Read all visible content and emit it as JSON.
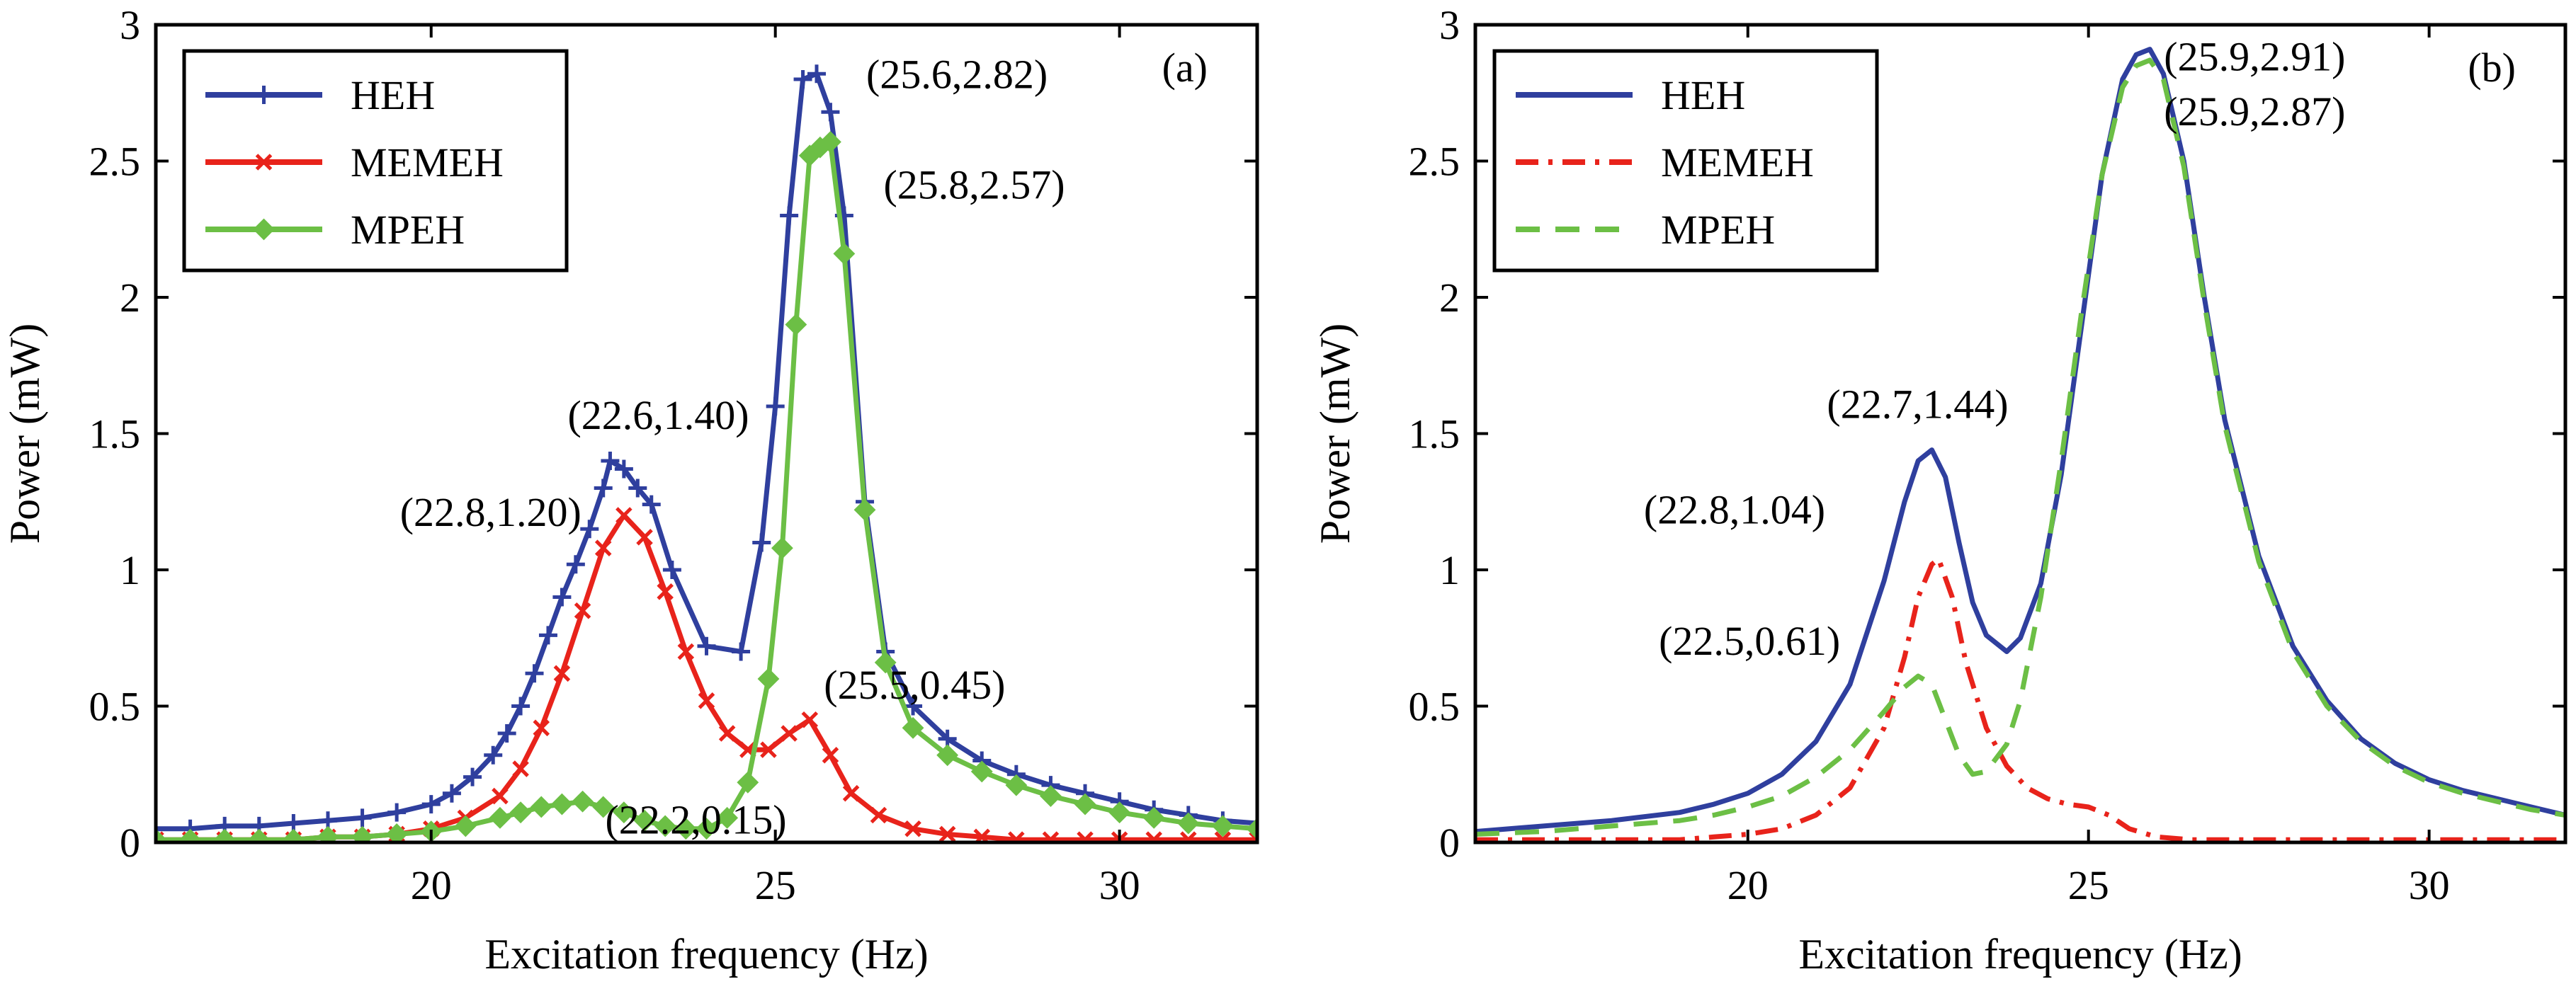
{
  "chart_data": [
    {
      "panel_label": "(a)",
      "type": "line",
      "xlabel": "Excitation frequency (Hz)",
      "ylabel": "Power (mW)",
      "xlim": [
        16,
        32
      ],
      "ylim": [
        0,
        3
      ],
      "xticks": [
        20,
        25,
        30
      ],
      "yticks": [
        0,
        0.5,
        1,
        1.5,
        2,
        2.5,
        3
      ],
      "ytick_labels": [
        "0",
        "0.5",
        "1",
        "1.5",
        "2",
        "2.5",
        "3"
      ],
      "legend_position": "top-left",
      "series": [
        {
          "name": "HEH",
          "color": "#2f3f9e",
          "line": "solid",
          "marker": "plus",
          "x": [
            16,
            16.5,
            17,
            17.5,
            18,
            18.5,
            19,
            19.5,
            20,
            20.3,
            20.6,
            20.9,
            21.1,
            21.3,
            21.5,
            21.7,
            21.9,
            22.1,
            22.3,
            22.5,
            22.6,
            22.8,
            23.0,
            23.2,
            23.5,
            24.0,
            24.5,
            24.8,
            25.0,
            25.2,
            25.4,
            25.6,
            25.8,
            26.0,
            26.3,
            26.6,
            27.0,
            27.5,
            28.0,
            28.5,
            29,
            29.5,
            30,
            30.5,
            31,
            31.5,
            32
          ],
          "y": [
            0.05,
            0.05,
            0.06,
            0.06,
            0.07,
            0.08,
            0.09,
            0.11,
            0.14,
            0.18,
            0.24,
            0.32,
            0.4,
            0.5,
            0.62,
            0.76,
            0.9,
            1.02,
            1.15,
            1.3,
            1.4,
            1.37,
            1.3,
            1.24,
            1.0,
            0.72,
            0.7,
            1.1,
            1.6,
            2.3,
            2.8,
            2.82,
            2.68,
            2.3,
            1.25,
            0.7,
            0.5,
            0.38,
            0.3,
            0.25,
            0.21,
            0.18,
            0.15,
            0.12,
            0.1,
            0.08,
            0.07
          ]
        },
        {
          "name": "MEMEH",
          "color": "#e8231b",
          "line": "solid",
          "marker": "x",
          "x": [
            16,
            16.5,
            17,
            17.5,
            18,
            18.5,
            19,
            19.5,
            20,
            20.5,
            21.0,
            21.3,
            21.6,
            21.9,
            22.2,
            22.5,
            22.8,
            23.1,
            23.4,
            23.7,
            24.0,
            24.3,
            24.6,
            24.9,
            25.2,
            25.5,
            25.8,
            26.1,
            26.5,
            27.0,
            27.5,
            28,
            28.5,
            29,
            29.5,
            30,
            30.5,
            31,
            31.5,
            32
          ],
          "y": [
            0.01,
            0.01,
            0.01,
            0.01,
            0.01,
            0.02,
            0.02,
            0.03,
            0.05,
            0.09,
            0.17,
            0.27,
            0.42,
            0.62,
            0.85,
            1.08,
            1.2,
            1.12,
            0.92,
            0.7,
            0.52,
            0.4,
            0.34,
            0.34,
            0.4,
            0.45,
            0.32,
            0.18,
            0.1,
            0.05,
            0.03,
            0.02,
            0.01,
            0.01,
            0.01,
            0.01,
            0.01,
            0.01,
            0.01,
            0.01
          ]
        },
        {
          "name": "MPEH",
          "color": "#6cbf45",
          "line": "solid",
          "marker": "diamond",
          "x": [
            16,
            16.5,
            17,
            17.5,
            18,
            18.5,
            19,
            19.5,
            20,
            20.5,
            21.0,
            21.3,
            21.6,
            21.9,
            22.2,
            22.5,
            22.8,
            23.1,
            23.4,
            23.7,
            24.0,
            24.3,
            24.6,
            24.9,
            25.1,
            25.3,
            25.5,
            25.65,
            25.8,
            26.0,
            26.3,
            26.6,
            27.0,
            27.5,
            28,
            28.5,
            29,
            29.5,
            30,
            30.5,
            31,
            31.5,
            32
          ],
          "y": [
            0.01,
            0.01,
            0.01,
            0.01,
            0.01,
            0.02,
            0.02,
            0.03,
            0.04,
            0.06,
            0.09,
            0.11,
            0.13,
            0.14,
            0.15,
            0.13,
            0.11,
            0.08,
            0.06,
            0.05,
            0.05,
            0.09,
            0.22,
            0.6,
            1.08,
            1.9,
            2.52,
            2.55,
            2.57,
            2.16,
            1.22,
            0.66,
            0.42,
            0.32,
            0.26,
            0.21,
            0.17,
            0.14,
            0.11,
            0.09,
            0.07,
            0.06,
            0.05
          ]
        }
      ],
      "annotations": [
        {
          "text": "(25.6,2.82)",
          "x": 25.6,
          "y": 2.82
        },
        {
          "text": "(25.8,2.57)",
          "x": 25.8,
          "y": 2.57
        },
        {
          "text": "(22.6,1.40)",
          "x": 22.6,
          "y": 1.4
        },
        {
          "text": "(22.8,1.20)",
          "x": 22.8,
          "y": 1.2
        },
        {
          "text": "(25.5,0.45)",
          "x": 25.5,
          "y": 0.45
        },
        {
          "text": "(22.2,0.15)",
          "x": 22.2,
          "y": 0.15
        }
      ]
    },
    {
      "panel_label": "(b)",
      "type": "line",
      "xlabel": "Excitation frequency (Hz)",
      "ylabel": "Power (mW)",
      "xlim": [
        16,
        32
      ],
      "ylim": [
        0,
        3
      ],
      "xticks": [
        20,
        25,
        30
      ],
      "yticks": [
        0,
        0.5,
        1,
        1.5,
        2,
        2.5,
        3
      ],
      "ytick_labels": [
        "0",
        "0.5",
        "1",
        "1.5",
        "2",
        "2.5",
        "3"
      ],
      "legend_position": "top-left",
      "series": [
        {
          "name": "HEH",
          "color": "#2f3f9e",
          "line": "solid",
          "x": [
            16,
            17,
            18,
            19,
            19.5,
            20,
            20.5,
            21,
            21.5,
            22,
            22.3,
            22.5,
            22.7,
            22.9,
            23.1,
            23.3,
            23.5,
            23.8,
            24.0,
            24.3,
            24.6,
            24.9,
            25.2,
            25.5,
            25.7,
            25.9,
            26.1,
            26.4,
            26.7,
            27.0,
            27.5,
            28,
            28.5,
            29,
            29.5,
            30,
            30.5,
            31,
            31.5,
            32
          ],
          "y": [
            0.04,
            0.06,
            0.08,
            0.11,
            0.14,
            0.18,
            0.25,
            0.37,
            0.58,
            0.96,
            1.25,
            1.4,
            1.44,
            1.34,
            1.1,
            0.88,
            0.76,
            0.7,
            0.75,
            0.95,
            1.35,
            1.9,
            2.45,
            2.8,
            2.89,
            2.91,
            2.82,
            2.5,
            2.0,
            1.55,
            1.05,
            0.72,
            0.52,
            0.38,
            0.29,
            0.23,
            0.19,
            0.16,
            0.13,
            0.1
          ]
        },
        {
          "name": "MEMEH",
          "color": "#e8231b",
          "line": "dashdot",
          "x": [
            16,
            17,
            18,
            19,
            19.5,
            20,
            20.5,
            21,
            21.5,
            22,
            22.3,
            22.5,
            22.7,
            22.8,
            23.0,
            23.2,
            23.5,
            23.8,
            24.1,
            24.4,
            24.7,
            25.0,
            25.3,
            25.6,
            26.0,
            26.5,
            27,
            28,
            29,
            30,
            31,
            32
          ],
          "y": [
            0.01,
            0.01,
            0.01,
            0.01,
            0.02,
            0.03,
            0.05,
            0.1,
            0.2,
            0.42,
            0.68,
            0.9,
            1.02,
            1.04,
            0.9,
            0.66,
            0.42,
            0.28,
            0.2,
            0.16,
            0.14,
            0.13,
            0.1,
            0.05,
            0.02,
            0.01,
            0.01,
            0.01,
            0.01,
            0.01,
            0.01,
            0.01
          ]
        },
        {
          "name": "MPEH",
          "color": "#6cbf45",
          "line": "dashed",
          "x": [
            16,
            17,
            18,
            19,
            19.5,
            20,
            20.5,
            21,
            21.5,
            22,
            22.3,
            22.5,
            22.7,
            22.9,
            23.1,
            23.3,
            23.5,
            23.8,
            24.0,
            24.3,
            24.6,
            24.9,
            25.2,
            25.5,
            25.7,
            25.9,
            26.1,
            26.4,
            26.7,
            27.0,
            27.5,
            28,
            28.5,
            29,
            29.5,
            30,
            30.5,
            31,
            31.5,
            32
          ],
          "y": [
            0.03,
            0.04,
            0.06,
            0.08,
            0.1,
            0.13,
            0.17,
            0.24,
            0.34,
            0.48,
            0.57,
            0.61,
            0.58,
            0.45,
            0.32,
            0.25,
            0.26,
            0.36,
            0.52,
            0.9,
            1.4,
            1.95,
            2.45,
            2.77,
            2.85,
            2.87,
            2.8,
            2.48,
            1.98,
            1.53,
            1.03,
            0.7,
            0.5,
            0.37,
            0.28,
            0.22,
            0.18,
            0.15,
            0.12,
            0.1
          ]
        }
      ],
      "annotations": [
        {
          "text": "(25.9,2.91)",
          "x": 25.9,
          "y": 2.91
        },
        {
          "text": "(25.9,2.87)",
          "x": 25.9,
          "y": 2.87
        },
        {
          "text": "(22.7,1.44)",
          "x": 22.7,
          "y": 1.44
        },
        {
          "text": "(22.8,1.04)",
          "x": 22.8,
          "y": 1.04
        },
        {
          "text": "(22.5,0.61)",
          "x": 22.5,
          "y": 0.61
        }
      ]
    }
  ]
}
